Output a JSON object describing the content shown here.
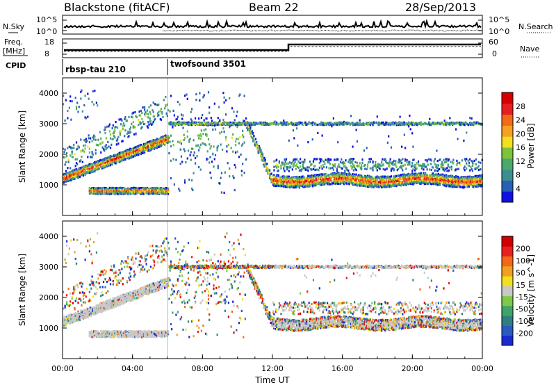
{
  "header": {
    "title": "Blackstone (fitACF)",
    "beam": "Beam 22",
    "date": "28/Sep/2013"
  },
  "strips": {
    "nsky_label": "N.Sky",
    "nsearch_label": "N.Search",
    "nsky_ticks": [
      "10^5",
      "10^0"
    ],
    "nsearch_ticks": [
      "10^5",
      "10^0"
    ],
    "freq_label_1": "Freq.",
    "freq_label_2": "[MHz]",
    "freq_ticks": [
      "18",
      "8"
    ],
    "nave_label": "Nave",
    "nave_ticks": [
      "60",
      "0"
    ],
    "cpid_label": "CPID",
    "cpid_segments": [
      "rbsp-tau 210",
      "twofsound 3501"
    ]
  },
  "chart_data": [
    {
      "type": "heatmap",
      "panel": "power",
      "ylabel": "Slant Range [km]",
      "xlabel": "Time UT",
      "yticks": [
        "1000",
        "2000",
        "3000",
        "4000"
      ],
      "ylim": [
        0,
        4500
      ],
      "xticks": [
        "00:00",
        "04:00",
        "08:00",
        "12:00",
        "16:00",
        "20:00",
        "00:00"
      ],
      "colorbar_label": "Power [dB]",
      "colorbar_ticks": [
        "4",
        "8",
        "12",
        "16",
        "20",
        "24",
        "28"
      ],
      "colorbar_colors": [
        "#1010e0",
        "#2860b8",
        "#3c8f8f",
        "#4ca86a",
        "#7bc43e",
        "#f2e020",
        "#f4a020",
        "#f06a18",
        "#e62020",
        "#d60000"
      ]
    },
    {
      "type": "heatmap",
      "panel": "velocity",
      "ylabel": "Slant Range [km]",
      "xlabel": "Time UT",
      "yticks": [
        "1000",
        "2000",
        "3000",
        "4000"
      ],
      "ylim": [
        0,
        4500
      ],
      "xticks": [
        "00:00",
        "04:00",
        "08:00",
        "12:00",
        "16:00",
        "20:00",
        "00:00"
      ],
      "colorbar_label": "Velocity [m s^-1]",
      "colorbar_ticks": [
        "200",
        "100",
        "50",
        "15",
        "-15",
        "-50",
        "-100",
        "-200"
      ],
      "colorbar_colors": [
        "#1a2ad0",
        "#285ac0",
        "#2f7f7f",
        "#3fa36a",
        "#80c848",
        "#c8c8c8",
        "#f0e020",
        "#f0a020",
        "#f06818",
        "#e82020",
        "#d00000"
      ]
    }
  ]
}
